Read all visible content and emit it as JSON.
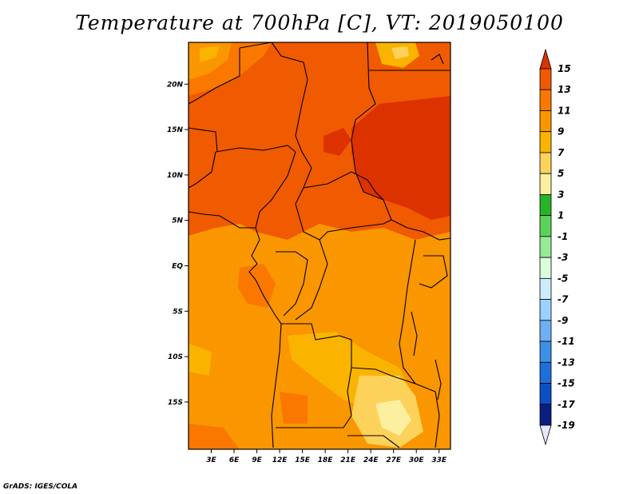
{
  "title": "Temperature at 700hPa [C], VT: 2019050100",
  "credit": "GrADS: IGES/COLA",
  "map": {
    "lat_labels": [
      {
        "text": "20N",
        "lat": 20
      },
      {
        "text": "15N",
        "lat": 15
      },
      {
        "text": "10N",
        "lat": 10
      },
      {
        "text": "5N",
        "lat": 5
      },
      {
        "text": "EQ",
        "lat": 0
      },
      {
        "text": "5S",
        "lat": -5
      },
      {
        "text": "10S",
        "lat": -10
      },
      {
        "text": "15S",
        "lat": -15
      }
    ],
    "lon_labels": [
      {
        "text": "3E",
        "lon": 3
      },
      {
        "text": "6E",
        "lon": 6
      },
      {
        "text": "9E",
        "lon": 9
      },
      {
        "text": "12E",
        "lon": 12
      },
      {
        "text": "15E",
        "lon": 15
      },
      {
        "text": "18E",
        "lon": 18
      },
      {
        "text": "21E",
        "lon": 21
      },
      {
        "text": "24E",
        "lon": 24
      },
      {
        "text": "27E",
        "lon": 27
      },
      {
        "text": "30E",
        "lon": 30
      },
      {
        "text": "33E",
        "lon": 33
      }
    ]
  },
  "colorbar": {
    "labels": [
      "15",
      "13",
      "11",
      "9",
      "7",
      "5",
      "3",
      "1",
      "-1",
      "-3",
      "-5",
      "-7",
      "-9",
      "-11",
      "-13",
      "-15",
      "-17",
      "-19"
    ],
    "colors": [
      "#dc3200",
      "#f05a00",
      "#fa7800",
      "#fa9600",
      "#fab400",
      "#fcd25a",
      "#fcf0a0",
      "#28b428",
      "#5ad25a",
      "#96eb96",
      "#dcffdc",
      "#cdebff",
      "#9bd2ff",
      "#6eaff5",
      "#3c91e6",
      "#1e6edc",
      "#0a50c3",
      "#0a1e82",
      "#e6e6ff"
    ]
  },
  "colors": {
    "warm_11_13": "#f05a00",
    "warm_9_11": "#fa7800",
    "warm_7_9": "#fa9600",
    "warm_5_7": "#fab400",
    "warm_3_5": "#fcd25a",
    "warm_1_3": "#fcf0a0",
    "hot_13_15": "#dc3200"
  }
}
